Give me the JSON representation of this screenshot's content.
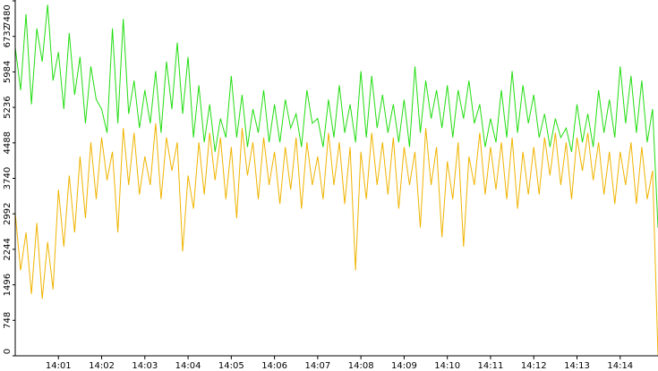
{
  "chart_data": {
    "type": "line",
    "categories": [
      null,
      null,
      null,
      null,
      null,
      null,
      null,
      null,
      "14:01",
      null,
      null,
      null,
      null,
      null,
      null,
      null,
      "14:02",
      null,
      null,
      null,
      null,
      null,
      null,
      null,
      "14:03",
      null,
      null,
      null,
      null,
      null,
      null,
      null,
      "14:04",
      null,
      null,
      null,
      null,
      null,
      null,
      null,
      "14:05",
      null,
      null,
      null,
      null,
      null,
      null,
      null,
      "14:06",
      null,
      null,
      null,
      null,
      null,
      null,
      null,
      "14:07",
      null,
      null,
      null,
      null,
      null,
      null,
      null,
      "14:08",
      null,
      null,
      null,
      null,
      null,
      null,
      null,
      "14:09",
      null,
      null,
      null,
      null,
      null,
      null,
      null,
      "14:10",
      null,
      null,
      null,
      null,
      null,
      null,
      null,
      "14:11",
      null,
      null,
      null,
      null,
      null,
      null,
      null,
      "14:12",
      null,
      null,
      null,
      null,
      null,
      null,
      null,
      "14:13",
      null,
      null,
      null,
      null,
      null,
      null,
      null,
      "14:14",
      null,
      null,
      null,
      null,
      null,
      null,
      null
    ],
    "series": [
      {
        "color": "#22dd11",
        "values": [
          6500,
          5600,
          7200,
          5300,
          6900,
          6200,
          7400,
          5800,
          6400,
          5200,
          6800,
          5500,
          6300,
          4900,
          6100,
          5400,
          5200,
          4700,
          6900,
          4900,
          7100,
          5100,
          5800,
          4800,
          5600,
          4900,
          6000,
          4700,
          6200,
          5200,
          6600,
          5100,
          6300,
          4600,
          5700,
          4500,
          5300,
          4300,
          5000,
          4600,
          5900,
          4600,
          5500,
          4400,
          5200,
          4700,
          5600,
          4500,
          5300,
          4500,
          5400,
          4800,
          5100,
          4400,
          5600,
          4900,
          5000,
          4400,
          5400,
          4600,
          5700,
          4700,
          5300,
          4500,
          6000,
          4600,
          5900,
          4800,
          5500,
          4700,
          5300,
          4500,
          5400,
          4400,
          6100,
          4700,
          5800,
          5000,
          5600,
          4800,
          5700,
          4600,
          5600,
          5000,
          5800,
          4900,
          5300,
          4400,
          5000,
          4500,
          5600,
          4600,
          6000,
          4700,
          5700,
          4900,
          5500,
          4600,
          5100,
          4400,
          5000,
          4600,
          4800,
          4300,
          5300,
          4500,
          5100,
          4400,
          5600,
          4700,
          5400,
          4600,
          6100,
          4900,
          5900,
          4700,
          5800,
          4500,
          5200,
          2700
        ]
      },
      {
        "color": "#f0b400",
        "values": [
          3000,
          1800,
          2600,
          1300,
          2800,
          1200,
          2400,
          1400,
          3500,
          2300,
          3800,
          2600,
          4200,
          2900,
          4500,
          3300,
          4600,
          3700,
          4300,
          2600,
          4800,
          3600,
          4700,
          3400,
          4200,
          3600,
          4900,
          3300,
          4600,
          3900,
          4500,
          2200,
          3800,
          3100,
          4500,
          3400,
          4700,
          3700,
          4600,
          3300,
          4400,
          2900,
          4800,
          3800,
          4500,
          3300,
          4600,
          3600,
          4300,
          3200,
          4400,
          3500,
          4600,
          3100,
          4500,
          3600,
          4200,
          3300,
          4700,
          3600,
          4500,
          3200,
          4400,
          1800,
          4300,
          3300,
          4700,
          3600,
          4500,
          3400,
          4600,
          3100,
          4400,
          3600,
          4300,
          2700,
          4800,
          3600,
          4400,
          2500,
          4100,
          3300,
          4500,
          2300,
          4200,
          3600,
          4700,
          3400,
          4400,
          3500,
          4500,
          3300,
          4600,
          3100,
          4300,
          3400,
          4400,
          3400,
          4600,
          3800,
          4700,
          3600,
          4500,
          3300,
          4600,
          3900,
          4700,
          3700,
          4500,
          3400,
          4300,
          3200,
          4300,
          3600,
          4500,
          3200,
          4400,
          3300,
          3900,
          0
        ]
      }
    ],
    "ylim": [
      0,
      7480
    ],
    "yticks": [
      0,
      748,
      1496,
      2244,
      2992,
      3740,
      4488,
      5236,
      5984,
      6732,
      7480
    ]
  }
}
